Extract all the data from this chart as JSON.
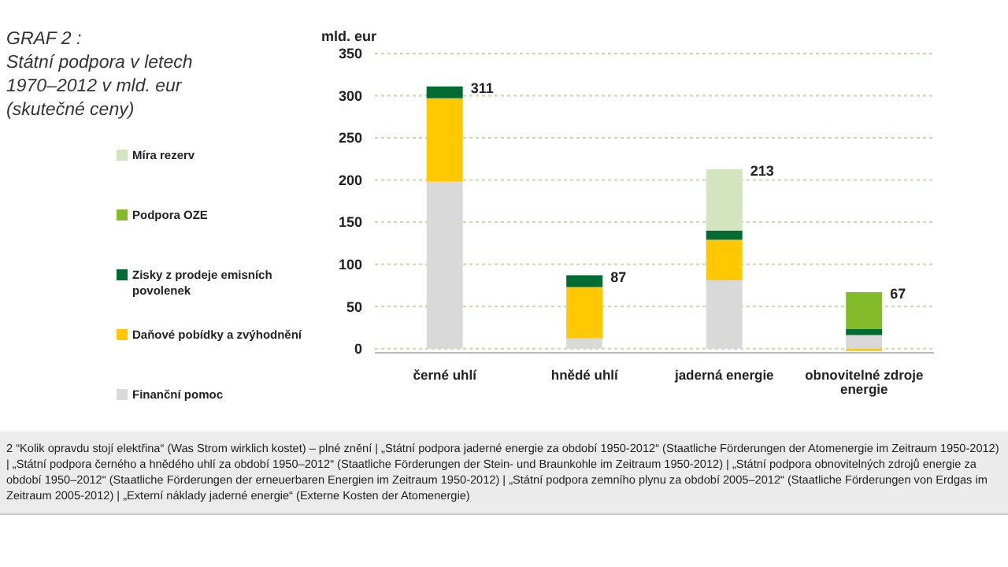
{
  "chart_data": {
    "type": "bar",
    "stacked": true,
    "title": "GRAF 2 :\nStátní podpora v letech\n1970–2012 v mld. eur\n(skutečné ceny)",
    "ylabel": "mld. eur",
    "categories": [
      "černé uhlí",
      "hnědé uhlí",
      "jaderná energie",
      "obnovitelné zdroje energie"
    ],
    "series": [
      {
        "name": "Finanční pomoc",
        "color": "#d9d9d9",
        "values": [
          198,
          12,
          81,
          16
        ]
      },
      {
        "name": "Daňové pobídky a zvýhodnění",
        "color": "#ffc800",
        "values": [
          99,
          61,
          48,
          -3
        ]
      },
      {
        "name": "Zisky z prodeje emisních povolenek",
        "color": "#006b33",
        "values": [
          14,
          14,
          11,
          7
        ]
      },
      {
        "name": "Podpora OZE",
        "color": "#84bb2a",
        "values": [
          null,
          null,
          null,
          44
        ]
      },
      {
        "name": "Míra rezerv",
        "color": "#d3e5bf",
        "values": [
          null,
          null,
          73,
          null
        ]
      }
    ],
    "totals": [
      "311",
      "87",
      "213",
      "67"
    ],
    "ylim": [
      -5,
      350
    ],
    "yticks": [
      0,
      50,
      100,
      150,
      200,
      250,
      300,
      350
    ],
    "grid": "y",
    "legend": "left",
    "annotations": [
      "2 “Kolik opravdu stojí elektřina“ (Was Strom wirklich kostet) – plné znění | „Státní podpora jaderné energie za období 1950-2012“ (Staatliche Förderungen der Atomenergie im Zeitraum 1950-2012) | „Státní podpora černého a hnědého uhlí za období 1950–2012“ (Staatliche Förderungen der Stein- und Braunkohle im Zeitraum 1950-2012) | „Státní podpora obnovitelných zdrojů energie za období 1950–2012“ (Staatliche Förderungen der erneuerbaren Energien im Zeitraum 1950-2012) | „Státní podpora zemního plynu za období 2005–2012“ (Staatliche Förderungen von Erdgas im Zeitraum 2005-2012) | „Externí náklady jaderné energie“ (Externe Kosten der Atomenergie)"
    ]
  }
}
